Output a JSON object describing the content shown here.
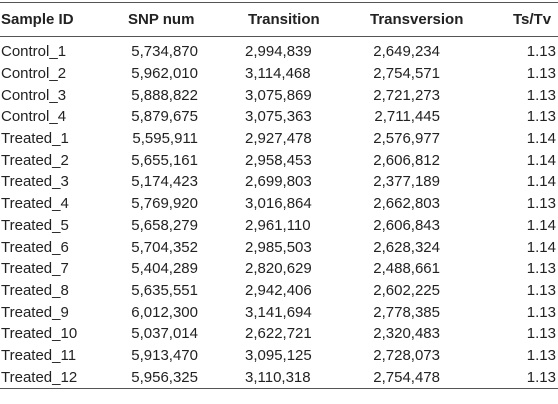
{
  "table": {
    "header": [
      "Sample ID",
      "SNP num",
      "Transition",
      "Transversion",
      "Ts/Tv"
    ],
    "rows": [
      [
        "Control_1",
        "5,734,870",
        "2,994,839",
        "2,649,234",
        "1.13"
      ],
      [
        "Control_2",
        "5,962,010",
        "3,114,468",
        "2,754,571",
        "1.13"
      ],
      [
        "Control_3",
        "5,888,822",
        "3,075,869",
        "2,721,273",
        "1.13"
      ],
      [
        "Control_4",
        "5,879,675",
        "3,075,363",
        "2,711,445",
        "1.13"
      ],
      [
        "Treated_1",
        "5,595,911",
        "2,927,478",
        "2,576,977",
        "1.14"
      ],
      [
        "Treated_2",
        "5,655,161",
        "2,958,453",
        "2,606,812",
        "1.14"
      ],
      [
        "Treated_3",
        "5,174,423",
        "2,699,803",
        "2,377,189",
        "1.14"
      ],
      [
        "Treated_4",
        "5,769,920",
        "3,016,864",
        "2,662,803",
        "1.13"
      ],
      [
        "Treated_5",
        "5,658,279",
        "2,961,110",
        "2,606,843",
        "1.14"
      ],
      [
        "Treated_6",
        "5,704,352",
        "2,985,503",
        "2,628,324",
        "1.14"
      ],
      [
        "Treated_7",
        "5,404,289",
        "2,820,629",
        "2,488,661",
        "1.13"
      ],
      [
        "Treated_8",
        "5,635,551",
        "2,942,406",
        "2,602,225",
        "1.13"
      ],
      [
        "Treated_9",
        "6,012,300",
        "3,141,694",
        "2,778,385",
        "1.13"
      ],
      [
        "Treated_10",
        "5,037,014",
        "2,622,721",
        "2,320,483",
        "1.13"
      ],
      [
        "Treated_11",
        "5,913,470",
        "3,095,125",
        "2,728,073",
        "1.13"
      ],
      [
        "Treated_12",
        "5,956,325",
        "3,110,318",
        "2,754,478",
        "1.13"
      ]
    ]
  }
}
